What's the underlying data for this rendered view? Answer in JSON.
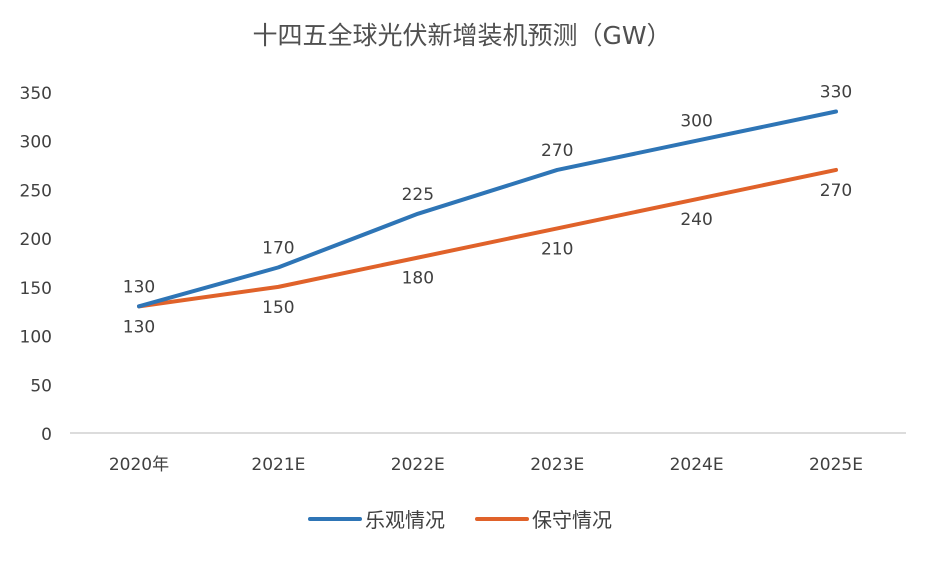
{
  "chart_data": {
    "type": "line",
    "title": "十四五全球光伏新增装机预测（GW）",
    "xlabel": "",
    "ylabel": "",
    "categories": [
      "2020年",
      "2021E",
      "2022E",
      "2023E",
      "2024E",
      "2025E"
    ],
    "ylim": [
      0,
      350
    ],
    "yticks": [
      0,
      50,
      100,
      150,
      200,
      250,
      300,
      350
    ],
    "grid": false,
    "legend_position": "bottom",
    "series": [
      {
        "name": "乐观情况",
        "color": "#2e75b6",
        "values": [
          130,
          170,
          225,
          270,
          300,
          330
        ]
      },
      {
        "name": "保守情况",
        "color": "#e0622a",
        "values": [
          130,
          150,
          180,
          210,
          240,
          270
        ]
      }
    ]
  }
}
